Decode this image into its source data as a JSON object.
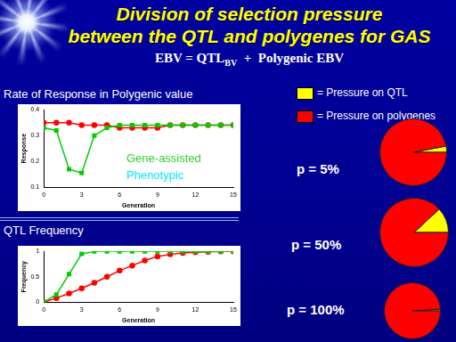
{
  "title": [
    "Division of selection pressure",
    "between the QTL and polygenes for GAS"
  ],
  "subtitle": {
    "text": "EBV = QTL",
    "subscript": "BV",
    "text_after": "+  Polygenic EBV"
  },
  "chart_data": [
    {
      "type": "line",
      "title": "Rate of Response in Polygenic value",
      "x_label": "Generation",
      "y_label": "Response",
      "x": [
        0,
        1,
        2,
        3,
        4,
        5,
        6,
        7,
        8,
        9,
        10,
        11,
        12,
        13,
        14,
        15
      ],
      "xlim": [
        0,
        15
      ],
      "xticks": [
        0,
        3,
        6,
        9,
        12,
        15
      ],
      "ylim": [
        0.1,
        0.4
      ],
      "yticks": [
        0.1,
        0.2,
        0.3,
        0.4
      ],
      "grid": false,
      "series": [
        {
          "name": "Gene-assisted",
          "color": "#00cc00",
          "marker": "square",
          "line_style": "solid",
          "values": [
            0.33,
            0.32,
            0.17,
            0.155,
            0.3,
            0.33,
            0.34,
            0.34,
            0.34,
            0.34,
            0.34,
            0.34,
            0.34,
            0.34,
            0.34,
            0.34
          ]
        },
        {
          "name": "Phenotypic",
          "color": "#ff0000",
          "marker": "circle",
          "line_style": "solid",
          "values": [
            0.35,
            0.35,
            0.35,
            0.34,
            0.34,
            0.34,
            0.33,
            0.33,
            0.33,
            0.33,
            0.34,
            0.34,
            0.34,
            0.34,
            0.34,
            0.34
          ]
        }
      ],
      "annotations": [
        {
          "text": "Gene-assisted",
          "color": "#33cc33"
        },
        {
          "text": "Phenotypic",
          "color": "#00e5ff"
        }
      ]
    },
    {
      "type": "line",
      "title": "QTL  Frequency",
      "x_label": "Generation",
      "y_label": "Frequency",
      "x": [
        0,
        1,
        2,
        3,
        4,
        5,
        6,
        7,
        8,
        9,
        10,
        11,
        12,
        13,
        14,
        15
      ],
      "xlim": [
        0,
        15
      ],
      "xticks": [
        0,
        3,
        6,
        9,
        12,
        15
      ],
      "ylim": [
        0,
        1
      ],
      "yticks": [
        0,
        0.5,
        1
      ],
      "grid": false,
      "series": [
        {
          "name": "Gene-assisted",
          "color": "#00cc00",
          "marker": "square",
          "line_style": "solid",
          "values": [
            0,
            0.15,
            0.55,
            0.95,
            1,
            1,
            1,
            1,
            1,
            1,
            1,
            1,
            1,
            1,
            1,
            1
          ]
        },
        {
          "name": "Phenotypic",
          "color": "#ff0000",
          "marker": "circle",
          "line_style": "solid",
          "values": [
            0,
            0.08,
            0.17,
            0.27,
            0.38,
            0.5,
            0.62,
            0.72,
            0.82,
            0.9,
            0.94,
            0.97,
            0.98,
            0.99,
            1,
            1
          ]
        }
      ]
    },
    {
      "type": "pie",
      "title": "p = 5%",
      "categories": [
        "= Pressure on QTL",
        "= Pressure on polygenes"
      ],
      "values": [
        3,
        97
      ],
      "colors": [
        "#ffff00",
        "#ff0000"
      ]
    },
    {
      "type": "pie",
      "title": "p = 50%",
      "categories": [
        "= Pressure on QTL",
        "= Pressure on polygenes"
      ],
      "values": [
        12,
        88
      ],
      "colors": [
        "#ffff00",
        "#ff0000"
      ]
    },
    {
      "type": "pie",
      "title": "p = 100%",
      "categories": [
        "= Pressure on QTL",
        "= Pressure on polygenes"
      ],
      "values": [
        1,
        99
      ],
      "colors": [
        "#ffff00",
        "#ff0000"
      ]
    }
  ]
}
